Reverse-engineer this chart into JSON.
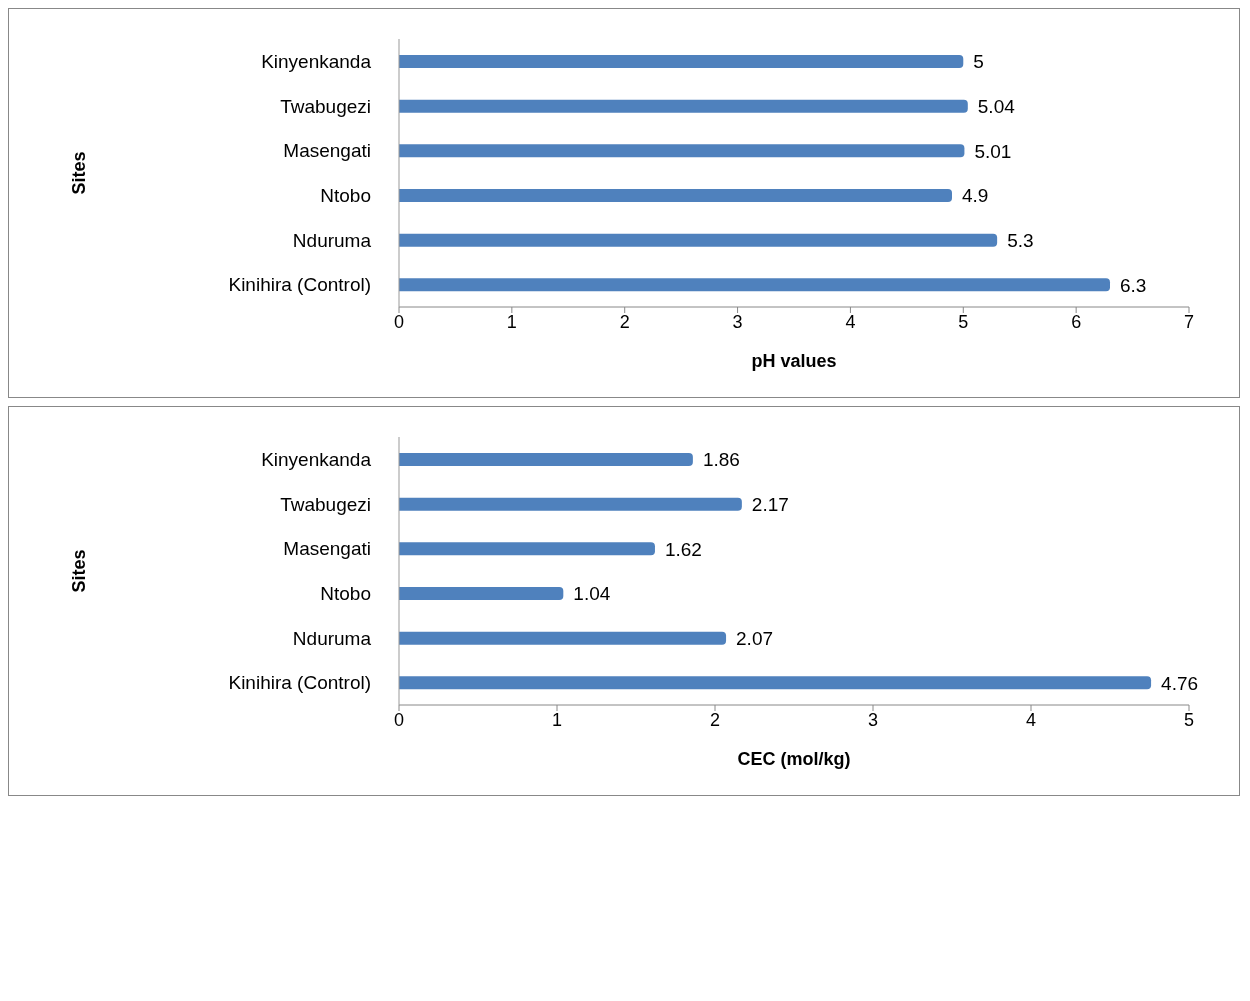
{
  "chart_data": [
    {
      "type": "bar",
      "orientation": "horizontal",
      "categories": [
        "Kinyenkanda",
        "Twabugezi",
        "Masengati",
        "Ntobo",
        "Nduruma",
        "Kinihira (Control)"
      ],
      "values": [
        5,
        5.04,
        5.01,
        4.9,
        5.3,
        6.3
      ],
      "color": "#4f81bd",
      "xlabel": "pH values",
      "ylabel": "Sites",
      "xlim": [
        0,
        7
      ],
      "xticks": [
        0,
        1,
        2,
        3,
        4,
        5,
        6,
        7
      ],
      "data_labels": true,
      "grid": false,
      "legend": false
    },
    {
      "type": "bar",
      "orientation": "horizontal",
      "categories": [
        "Kinyenkanda",
        "Twabugezi",
        "Masengati",
        "Ntobo",
        "Nduruma",
        "Kinihira (Control)"
      ],
      "values": [
        1.86,
        2.17,
        1.62,
        1.04,
        2.07,
        4.76
      ],
      "color": "#4f81bd",
      "xlabel": "CEC (mol/kg)",
      "ylabel": "Sites",
      "xlim": [
        0,
        5
      ],
      "xticks": [
        0,
        1,
        2,
        3,
        4,
        5
      ],
      "data_labels": true,
      "grid": false,
      "legend": false
    }
  ]
}
